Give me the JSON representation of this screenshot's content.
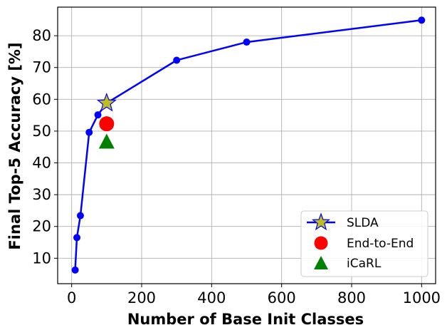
{
  "chart_data": {
    "type": "line",
    "xlabel": "Number of Base Init Classes",
    "ylabel": "Final Top-5 Accuracy [%]",
    "xlim": [
      -40,
      1040
    ],
    "ylim": [
      2,
      89
    ],
    "xticks": [
      0,
      200,
      400,
      600,
      800,
      1000
    ],
    "yticks": [
      10,
      20,
      30,
      40,
      50,
      60,
      70,
      80
    ],
    "grid": true,
    "legend_position": "bottom-right",
    "series": [
      {
        "name": "SLDA",
        "kind": "line",
        "color": "#0000ff",
        "marker_color": "#bdbd22",
        "x": [
          10,
          15,
          25,
          50,
          75,
          100,
          300,
          500,
          1000
        ],
        "y": [
          6.3,
          16.5,
          23.4,
          49.6,
          55.1,
          58.8,
          72.3,
          78.0,
          84.9
        ],
        "highlight_x": 100
      },
      {
        "name": "End-to-End",
        "kind": "scatter",
        "marker": "circle",
        "color": "#ff0000",
        "x": [
          100
        ],
        "y": [
          52.3
        ]
      },
      {
        "name": "iCaRL",
        "kind": "scatter",
        "marker": "triangle",
        "color": "#008000",
        "x": [
          100
        ],
        "y": [
          46.5
        ]
      }
    ]
  }
}
